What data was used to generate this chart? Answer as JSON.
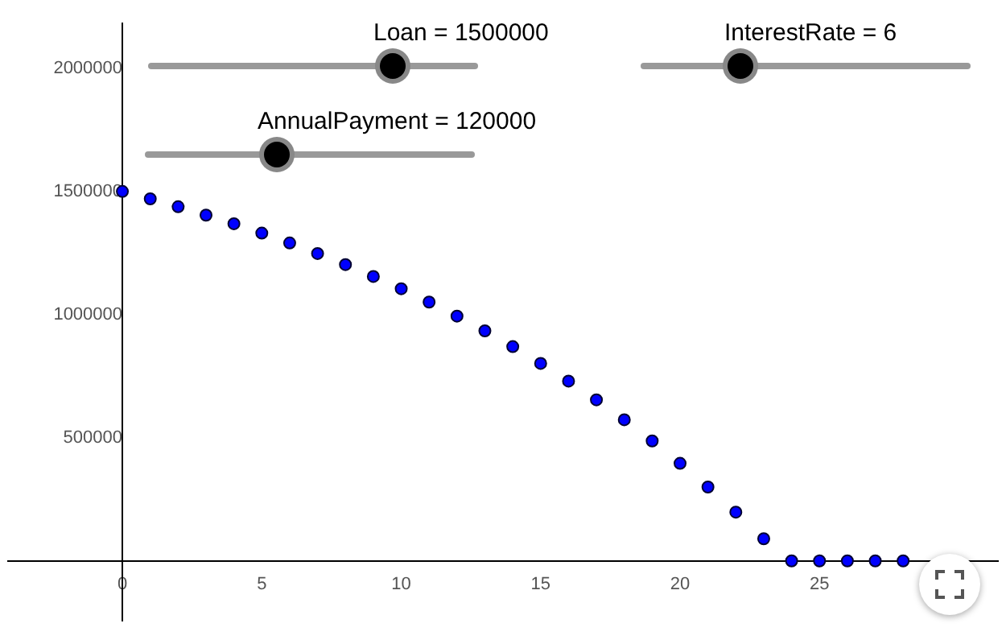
{
  "chart_data": {
    "type": "scatter",
    "annotations": [
      "Loan = 1500000",
      "InterestRate = 6",
      "AnnualPayment = 120000"
    ],
    "x": [
      0,
      1,
      2,
      3,
      4,
      5,
      6,
      7,
      8,
      9,
      10,
      11,
      12,
      13,
      14,
      15,
      16,
      17,
      18,
      19,
      20,
      21,
      22,
      23,
      24,
      25,
      26,
      27,
      28
    ],
    "series": [
      {
        "color": "#0000ff",
        "values": [
          1500000,
          1470000,
          1438000,
          1404000,
          1369000,
          1331000,
          1291000,
          1248000,
          1203000,
          1155000,
          1105000,
          1051000,
          994000,
          934000,
          870000,
          802000,
          730000,
          654000,
          573000,
          487000,
          396000,
          300000,
          198000,
          90000,
          0,
          0,
          0,
          0,
          0
        ]
      }
    ],
    "xlim": [
      -4.1,
      31.4
    ],
    "ylim": [
      -242000,
      2182000
    ],
    "xticks": [
      0,
      5,
      10,
      15,
      20,
      25
    ],
    "yticks": [
      500000,
      1000000,
      1500000,
      2000000
    ],
    "grid": false,
    "legend": false,
    "marker": "circle"
  }
}
